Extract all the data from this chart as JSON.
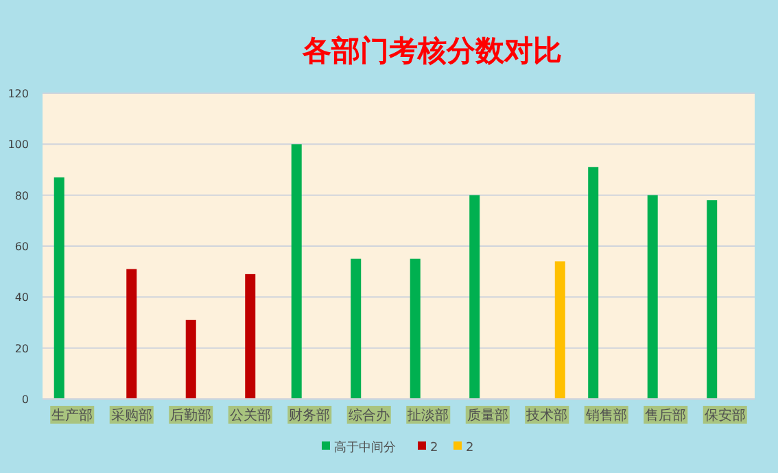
{
  "chart_data": {
    "type": "bar",
    "title": "各部门考核分数对比",
    "categories": [
      "生产部",
      "采购部",
      "后勤部",
      "公关部",
      "财务部",
      "综合办",
      "扯淡部",
      "质量部",
      "技术部",
      "销售部",
      "售后部",
      "保安部"
    ],
    "series": [
      {
        "name": "高于中间分",
        "color": "#00b050",
        "values": [
          87,
          null,
          null,
          null,
          100,
          55,
          55,
          80,
          null,
          91,
          80,
          78
        ]
      },
      {
        "name": "2",
        "color": "#c00000",
        "values": [
          null,
          51,
          31,
          49,
          null,
          null,
          null,
          null,
          null,
          null,
          null,
          null
        ]
      },
      {
        "name": "2",
        "color": "#ffc000",
        "values": [
          null,
          null,
          null,
          null,
          null,
          null,
          null,
          null,
          54,
          null,
          null,
          null
        ]
      }
    ],
    "ylim": [
      0,
      120
    ],
    "yticks": [
      0,
      20,
      40,
      60,
      80,
      100,
      120
    ],
    "grid": "y",
    "legend": "bottom"
  }
}
